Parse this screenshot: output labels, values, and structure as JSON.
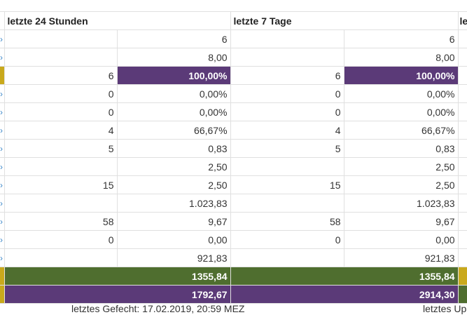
{
  "header": {
    "col_24h": "letzte 24 Stunden",
    "col_7d": "letzte 7 Tage",
    "col_next_partial": "le"
  },
  "rows": [
    {
      "a_left": "",
      "a_right": "6",
      "b_left": "",
      "b_right": "6",
      "edge": "blue"
    },
    {
      "a_left": "",
      "a_right": "8,00",
      "b_left": "",
      "b_right": "8,00",
      "edge": "blue"
    },
    {
      "a_left": "6",
      "a_right": "100,00%",
      "b_left": "6",
      "b_right": "100,00%",
      "edge": "yellow"
    },
    {
      "a_left": "0",
      "a_right": "0,00%",
      "b_left": "0",
      "b_right": "0,00%",
      "edge": "blue"
    },
    {
      "a_left": "0",
      "a_right": "0,00%",
      "b_left": "0",
      "b_right": "0,00%",
      "edge": "blue"
    },
    {
      "a_left": "4",
      "a_right": "66,67%",
      "b_left": "4",
      "b_right": "66,67%",
      "edge": "blue"
    },
    {
      "a_left": "5",
      "a_right": "0,83",
      "b_left": "5",
      "b_right": "0,83",
      "edge": "blue"
    },
    {
      "a_left": "",
      "a_right": "2,50",
      "b_left": "",
      "b_right": "2,50",
      "edge": "blue"
    },
    {
      "a_left": "15",
      "a_right": "2,50",
      "b_left": "15",
      "b_right": "2,50",
      "edge": "blue"
    },
    {
      "a_left": "",
      "a_right": "1.023,83",
      "b_left": "",
      "b_right": "1.023,83",
      "edge": "blue"
    },
    {
      "a_left": "58",
      "a_right": "9,67",
      "b_left": "58",
      "b_right": "9,67",
      "edge": "blue"
    },
    {
      "a_left": "0",
      "a_right": "0,00",
      "b_left": "0",
      "b_right": "0,00",
      "edge": "blue"
    },
    {
      "a_left": "",
      "a_right": "921,83",
      "b_left": "",
      "b_right": "921,83",
      "edge": "blue"
    },
    {
      "a_right": "1355,84",
      "b_right": "1355,84",
      "edge": "yellow"
    },
    {
      "a_right": "1792,67",
      "b_right": "2914,30",
      "edge": "yellow"
    }
  ],
  "footer": {
    "last_battle": "letztes Gefecht: 17.02.2019, 20:59 MEZ",
    "last_update_partial": "letztes Up"
  },
  "colors": {
    "purple": "#5b3a78",
    "green": "#4f6e2f",
    "yellow": "#c9a91c",
    "blue_mark": "#3a86c8"
  }
}
